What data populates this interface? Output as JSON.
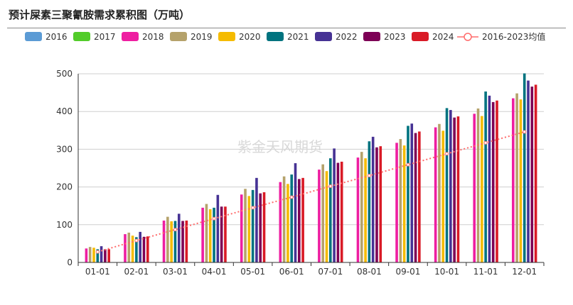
{
  "title": "预计屎素三聚氰胺需求累积图（万吨）",
  "watermark": "紫金天风期货",
  "chart_data": {
    "type": "bar",
    "title": "预计屎素三聚氰胺需求累积图（万吨）",
    "categories": [
      "01-01",
      "02-01",
      "03-01",
      "04-01",
      "05-01",
      "06-01",
      "07-01",
      "08-01",
      "09-01",
      "10-01",
      "11-01",
      "12-01"
    ],
    "ylim": [
      0,
      500
    ],
    "yticks": [
      0,
      100,
      200,
      300,
      400,
      500
    ],
    "grid": true,
    "legend_position": "top",
    "series": [
      {
        "name": "2016",
        "color": "#5b9bd5",
        "values": [
          null,
          null,
          null,
          null,
          null,
          null,
          null,
          null,
          null,
          null,
          null,
          null
        ]
      },
      {
        "name": "2017",
        "color": "#52cc2a",
        "values": [
          null,
          null,
          null,
          null,
          null,
          null,
          null,
          null,
          null,
          null,
          null,
          null
        ]
      },
      {
        "name": "2018",
        "color": "#ee1ea1",
        "values": [
          37,
          75,
          111,
          145,
          180,
          213,
          246,
          278,
          317,
          358,
          394,
          435
        ]
      },
      {
        "name": "2019",
        "color": "#b5a26b",
        "values": [
          41,
          79,
          121,
          155,
          195,
          228,
          260,
          293,
          327,
          367,
          408,
          448
        ]
      },
      {
        "name": "2020",
        "color": "#f5bb00",
        "values": [
          39,
          71,
          109,
          141,
          176,
          208,
          242,
          276,
          310,
          349,
          388,
          432
        ]
      },
      {
        "name": "2021",
        "color": "#00737f",
        "values": [
          35,
          67,
          110,
          145,
          192,
          233,
          276,
          321,
          362,
          409,
          453,
          501
        ]
      },
      {
        "name": "2022",
        "color": "#463294",
        "values": [
          43,
          81,
          129,
          179,
          224,
          263,
          302,
          333,
          368,
          404,
          442,
          482
        ]
      },
      {
        "name": "2023",
        "color": "#7d0055",
        "values": [
          35,
          68,
          110,
          148,
          183,
          221,
          264,
          305,
          343,
          384,
          425,
          466
        ]
      },
      {
        "name": "2024",
        "color": "#d91a26",
        "values": [
          35,
          69,
          111,
          148,
          186,
          224,
          267,
          308,
          347,
          387,
          429,
          471
        ]
      }
    ],
    "average": {
      "name": "2016-2023均值",
      "color": "#ff6b6b",
      "values": [
        28,
        58,
        87,
        116,
        145,
        173,
        202,
        230,
        259,
        288,
        317,
        346
      ]
    }
  }
}
